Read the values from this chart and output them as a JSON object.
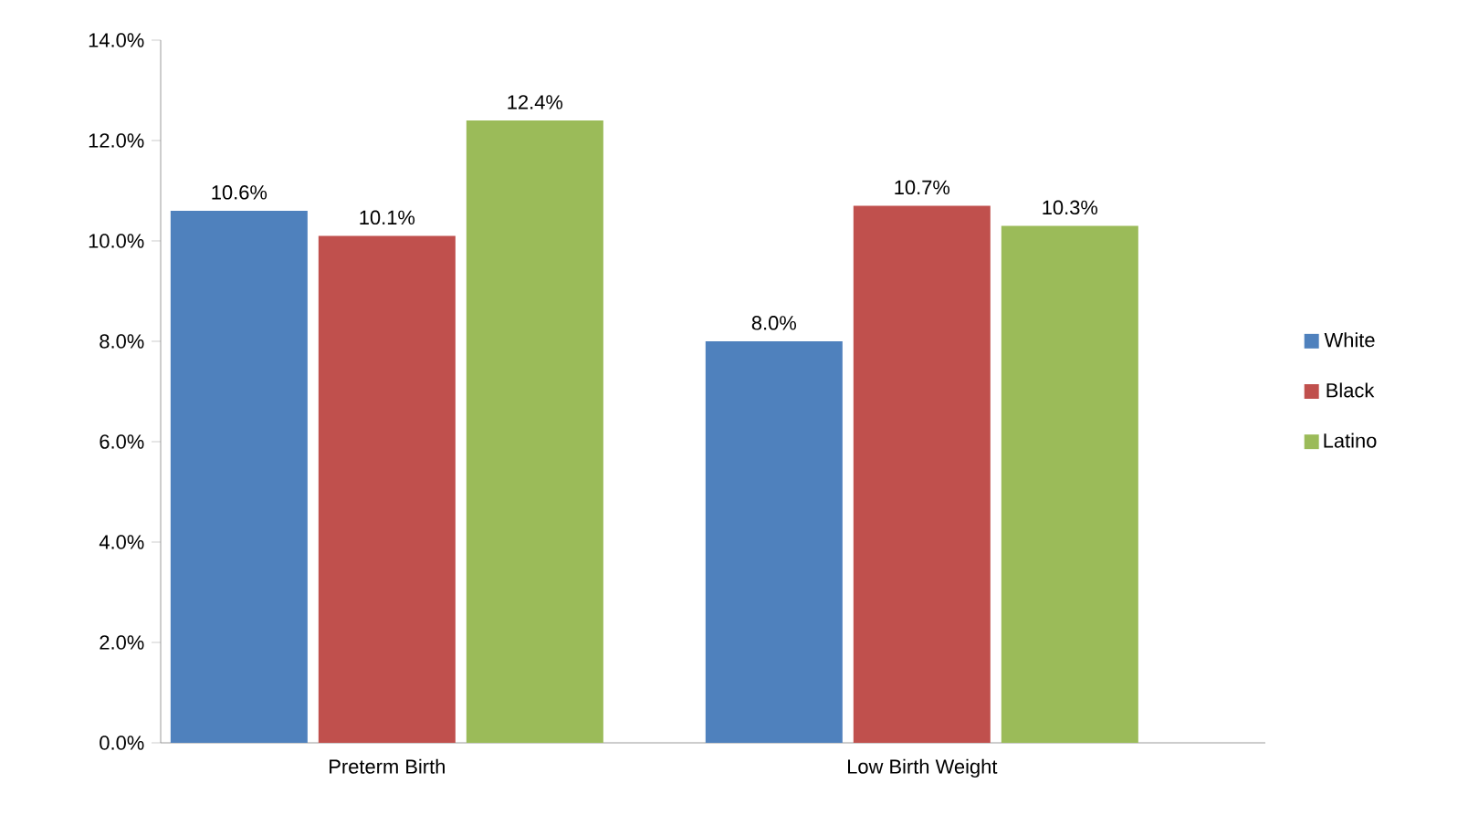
{
  "chart_data": {
    "type": "bar",
    "categories": [
      "Preterm Birth",
      "Low Birth Weight"
    ],
    "series": [
      {
        "name": "White",
        "color": "#4f81bd",
        "values": [
          10.6,
          8.0
        ],
        "value_labels": [
          "10.6%",
          "8.0%"
        ]
      },
      {
        "name": "Black",
        "color": "#c0504d",
        "values": [
          10.1,
          10.7
        ],
        "value_labels": [
          "10.1%",
          "10.7%"
        ]
      },
      {
        "name": "Latino",
        "color": "#9bbb59",
        "values": [
          12.4,
          10.3
        ],
        "value_labels": [
          "12.4%",
          "10.3%"
        ]
      }
    ],
    "ylim": [
      0,
      14
    ],
    "yticks": [
      {
        "value": 0,
        "label": "0.0%"
      },
      {
        "value": 2,
        "label": "2.0%"
      },
      {
        "value": 4,
        "label": "4.0%"
      },
      {
        "value": 6,
        "label": "6.0%"
      },
      {
        "value": 8,
        "label": "8.0%"
      },
      {
        "value": 10,
        "label": "10.0%"
      },
      {
        "value": 12,
        "label": "12.0%"
      },
      {
        "value": 14,
        "label": "14.0%"
      }
    ],
    "grid": false,
    "legend": "right"
  }
}
